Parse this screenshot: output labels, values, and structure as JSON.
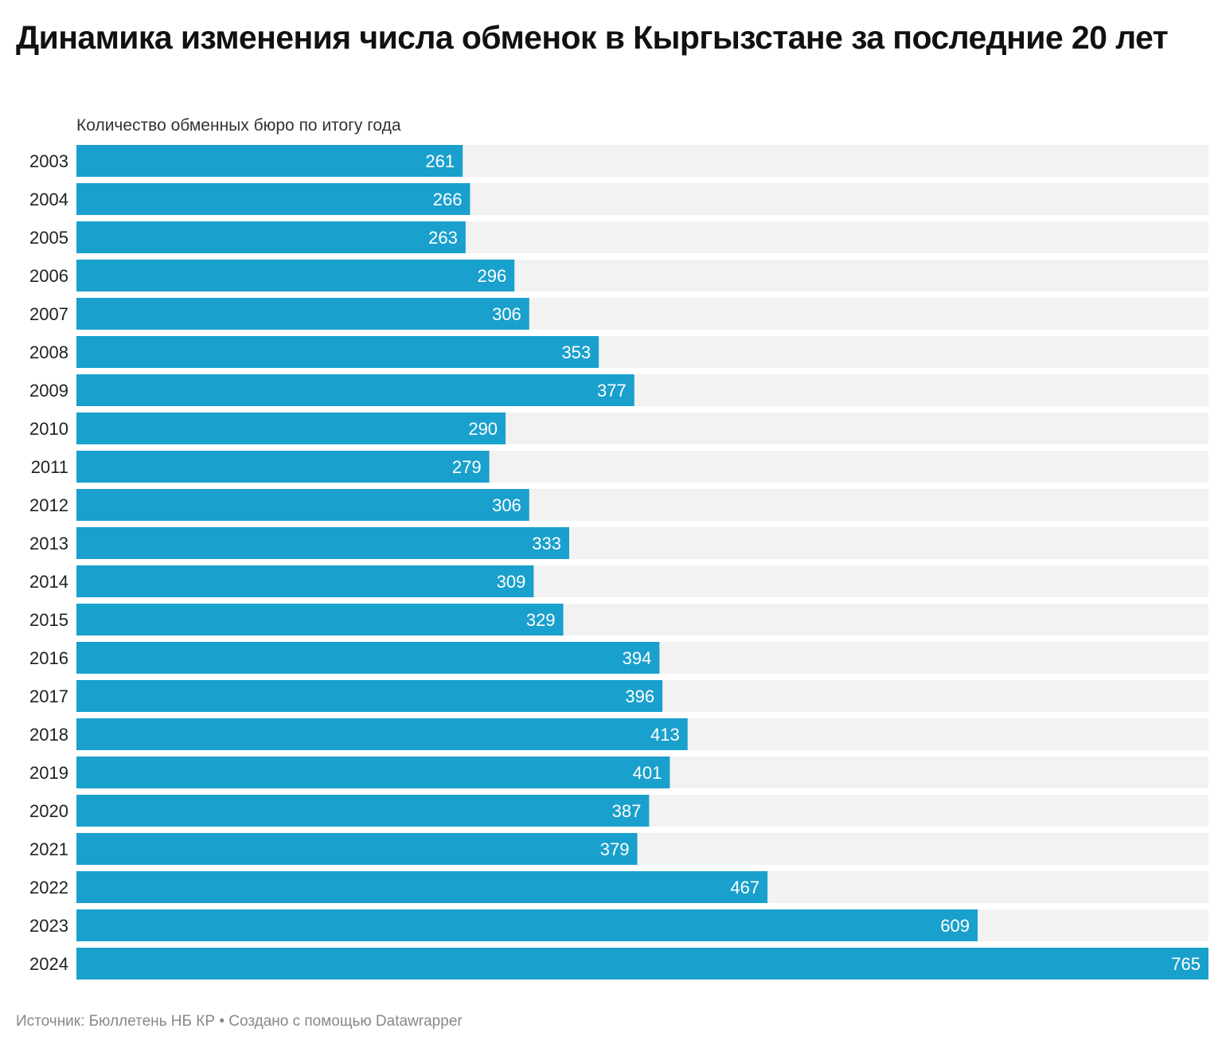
{
  "header": {
    "title": "Динамика изменения числа обменок в Кыргызстане за последние 20 лет",
    "subtitle": "Количество обменных бюро по итогу года"
  },
  "footer": {
    "source_label": "Источник:",
    "source": "Бюллетень НБ КР",
    "separator": "•",
    "credit": "Создано с помощью Datawrapper"
  },
  "colors": {
    "bar": "#1aa0cc",
    "track": "#f2f2f2",
    "label_inside": "#ffffff",
    "category_text": "#222222"
  },
  "chart_data": {
    "type": "bar",
    "orientation": "horizontal",
    "title": "Динамика изменения числа обменок в Кыргызстане за последние 20 лет",
    "subtitle": "Количество обменных бюро по итогу года",
    "categories": [
      "2003",
      "2004",
      "2005",
      "2006",
      "2007",
      "2008",
      "2009",
      "2010",
      "2011",
      "2012",
      "2013",
      "2014",
      "2015",
      "2016",
      "2017",
      "2018",
      "2019",
      "2020",
      "2021",
      "2022",
      "2023",
      "2024"
    ],
    "values": [
      261,
      266,
      263,
      296,
      306,
      353,
      377,
      290,
      279,
      306,
      333,
      309,
      329,
      394,
      396,
      413,
      401,
      387,
      379,
      467,
      609,
      765
    ],
    "xlim": [
      0,
      765
    ],
    "grid": false,
    "legend": "none",
    "data_labels": "inside-end"
  }
}
